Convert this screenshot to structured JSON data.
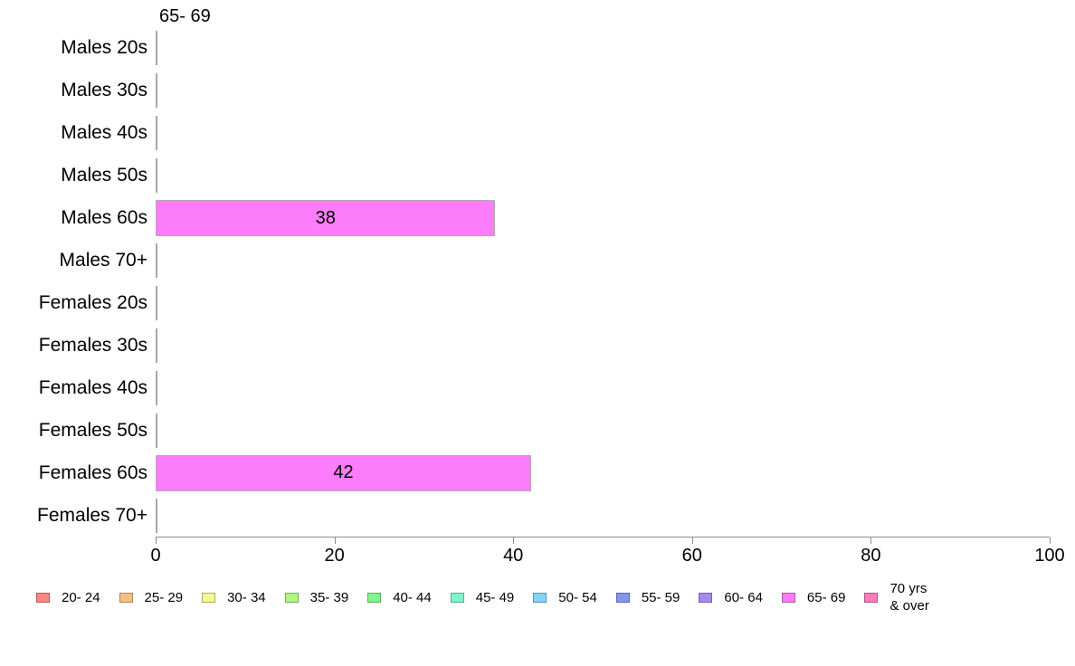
{
  "chart_data": {
    "type": "bar",
    "orientation": "horizontal",
    "title": "65- 69",
    "categories": [
      "Males 20s",
      "Males 30s",
      "Males 40s",
      "Males 50s",
      "Males 60s",
      "Males 70+",
      "Females 20s",
      "Females 30s",
      "Females 40s",
      "Females 50s",
      "Females 60s",
      "Females 70+"
    ],
    "values": [
      0,
      0,
      0,
      0,
      38,
      0,
      0,
      0,
      0,
      0,
      42,
      0
    ],
    "value_labels_shown": [
      "38",
      "42"
    ],
    "xlabel": "",
    "ylabel": "",
    "xlim": [
      0,
      100
    ],
    "x_ticks": [
      0,
      20,
      40,
      60,
      80,
      100
    ],
    "grid": false,
    "bar_color": "#fb7dfb",
    "bar_border_color": "#b3a9b3",
    "zero_line_color": "#a8a8a8",
    "axis_color": "#8c8c8c",
    "legend_position": "bottom",
    "legend": [
      {
        "label": "20- 24",
        "color": "#fb8682"
      },
      {
        "label": "25- 29",
        "color": "#f7c083"
      },
      {
        "label": "30- 34",
        "color": "#f6f78c"
      },
      {
        "label": "35- 39",
        "color": "#aef67e"
      },
      {
        "label": "40- 44",
        "color": "#7ef78f"
      },
      {
        "label": "45- 49",
        "color": "#7df6cb"
      },
      {
        "label": "50- 54",
        "color": "#82d4f7"
      },
      {
        "label": "55- 59",
        "color": "#8993f0"
      },
      {
        "label": "60- 64",
        "color": "#a888f0"
      },
      {
        "label": "65- 69",
        "color": "#fb7dfb"
      },
      {
        "label": "70 yrs & over",
        "label_lines": [
          "70 yrs",
          "& over"
        ],
        "color": "#fb7dba"
      }
    ]
  }
}
